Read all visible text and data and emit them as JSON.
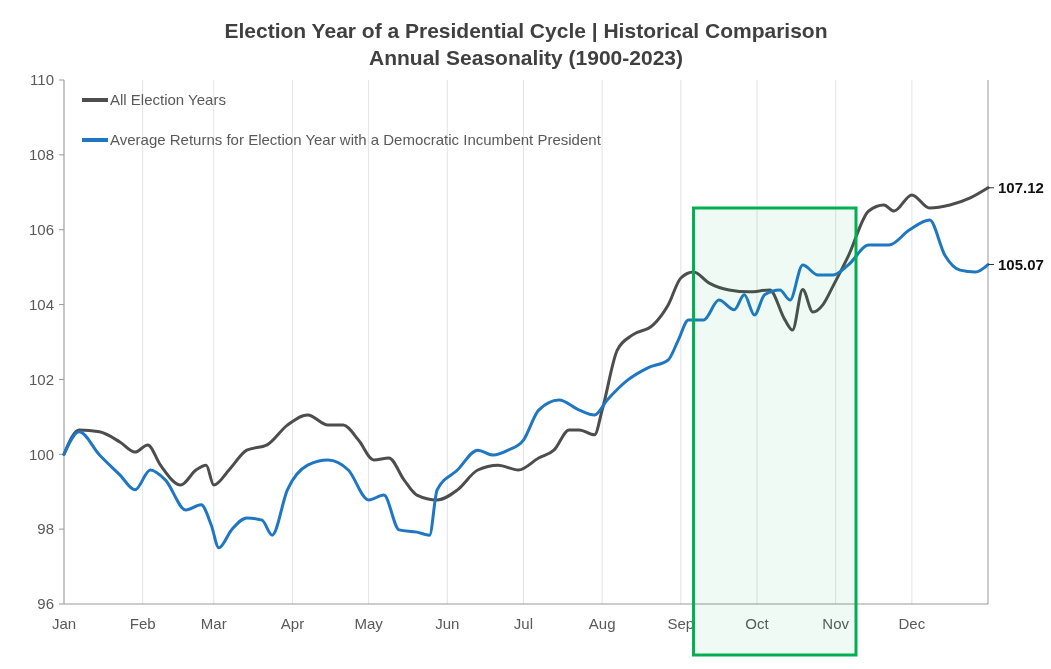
{
  "chart_data": {
    "type": "line",
    "title": "Election Year of a Presidential Cycle | Historical Comparison\nAnnual Seasonality (1900-2023)",
    "ylim": [
      96,
      110
    ],
    "yticks": [
      96,
      98,
      100,
      102,
      104,
      106,
      108,
      110
    ],
    "xlim": [
      "--01-01",
      "--12-31"
    ],
    "xticks": [
      {
        "value": "--01-01",
        "label": "Jan"
      },
      {
        "value": "--02-01",
        "label": "Feb"
      },
      {
        "value": "--03-01",
        "label": "Mar"
      },
      {
        "value": "--04-01",
        "label": "Apr"
      },
      {
        "value": "--05-01",
        "label": "May"
      },
      {
        "value": "--06-01",
        "label": "Jun"
      },
      {
        "value": "--07-01",
        "label": "Jul"
      },
      {
        "value": "--08-01",
        "label": "Aug"
      },
      {
        "value": "--09-01",
        "label": "Sep"
      },
      {
        "value": "--10-01",
        "label": "Oct"
      },
      {
        "value": "--11-01",
        "label": "Nov"
      },
      {
        "value": "--12-01",
        "label": "Dec"
      }
    ],
    "grid": "x",
    "legend": "top left",
    "line_style": "solid",
    "marker": "none",
    "series": [
      {
        "name": "All Election Years",
        "color": "#4d4d4d",
        "x": [
          "--01-01",
          "--01-07",
          "--01-15",
          "--01-23",
          "--01-29",
          "--02-03",
          "--02-08",
          "--02-16",
          "--02-22",
          "--02-26",
          "--03-01",
          "--03-07",
          "--03-14",
          "--03-22",
          "--03-30",
          "--04-07",
          "--04-15",
          "--04-21",
          "--04-27",
          "--05-03",
          "--05-09",
          "--05-15",
          "--05-20",
          "--05-28",
          "--06-05",
          "--06-13",
          "--06-21",
          "--06-29",
          "--07-07",
          "--07-13",
          "--07-19",
          "--07-23",
          "--07-29",
          "--08-01",
          "--08-07",
          "--08-13",
          "--08-21",
          "--08-27",
          "--09-01",
          "--09-06",
          "--09-12",
          "--09-20",
          "--09-28",
          "--10-06",
          "--10-12",
          "--10-15",
          "--10-19",
          "--10-23",
          "--10-27",
          "--10-31",
          "--11-06",
          "--11-14",
          "--11-20",
          "--11-24",
          "--12-01",
          "--12-08",
          "--12-16",
          "--12-24",
          "--12-31"
        ],
        "values": [
          100.0,
          100.65,
          100.6,
          100.33,
          100.06,
          100.25,
          99.71,
          99.18,
          99.58,
          99.71,
          99.18,
          99.58,
          100.11,
          100.25,
          100.78,
          101.05,
          100.78,
          100.78,
          100.38,
          99.85,
          99.9,
          99.31,
          98.91,
          98.78,
          99.05,
          99.58,
          99.71,
          99.58,
          99.9,
          100.11,
          100.65,
          100.65,
          100.52,
          101.18,
          102.79,
          103.19,
          103.45,
          103.99,
          104.71,
          104.87,
          104.58,
          104.39,
          104.34,
          104.39,
          103.59,
          103.32,
          104.4,
          103.8,
          104.0,
          104.5,
          105.3,
          106.5,
          106.66,
          106.5,
          106.93,
          106.58,
          106.66,
          106.85,
          107.12
        ]
      },
      {
        "name": "Average Returns for Election Year with a Democratic Incumbent President",
        "color": "#1f77c4",
        "x": [
          "--01-01",
          "--01-07",
          "--01-15",
          "--01-23",
          "--01-29",
          "--02-04",
          "--02-10",
          "--02-18",
          "--02-24",
          "--02-28",
          "--03-03",
          "--03-08",
          "--03-14",
          "--03-20",
          "--03-24",
          "--03-30",
          "--04-07",
          "--04-15",
          "--04-23",
          "--05-01",
          "--05-07",
          "--05-13",
          "--05-20",
          "--05-25",
          "--05-28",
          "--06-05",
          "--06-13",
          "--06-19",
          "--06-25",
          "--07-01",
          "--07-07",
          "--07-15",
          "--07-23",
          "--07-29",
          "--08-03",
          "--08-11",
          "--08-19",
          "--08-27",
          "--08-31",
          "--09-04",
          "--09-10",
          "--09-16",
          "--09-22",
          "--09-26",
          "--09-30",
          "--10-04",
          "--10-10",
          "--10-14",
          "--10-19",
          "--10-25",
          "--10-31",
          "--11-06",
          "--11-14",
          "--11-22",
          "--11-30",
          "--12-08",
          "--12-14",
          "--12-20",
          "--12-26",
          "--12-31"
        ],
        "values": [
          100.0,
          100.6,
          99.98,
          99.45,
          99.05,
          99.58,
          99.31,
          98.51,
          98.65,
          98.11,
          97.5,
          97.98,
          98.3,
          98.24,
          97.84,
          99.05,
          99.71,
          99.85,
          99.58,
          98.78,
          98.91,
          97.98,
          97.92,
          97.84,
          99.05,
          99.58,
          100.11,
          99.98,
          100.11,
          100.38,
          101.18,
          101.45,
          101.18,
          101.05,
          101.45,
          101.98,
          102.31,
          102.52,
          103.05,
          103.59,
          103.59,
          104.12,
          103.86,
          104.26,
          103.72,
          104.26,
          104.39,
          104.12,
          105.06,
          104.79,
          104.79,
          105.06,
          105.59,
          105.59,
          105.99,
          106.26,
          105.32,
          104.92,
          104.87,
          105.07
        ]
      }
    ],
    "annotations": [
      {
        "text": "107.12",
        "x": "--12-31",
        "y": 107.12
      },
      {
        "text": "105.07",
        "x": "--12-31",
        "y": 105.07
      }
    ],
    "bands": [
      {
        "axis": "x",
        "from": "--09-06",
        "to": "--11-09",
        "color": "#00b050"
      }
    ]
  }
}
